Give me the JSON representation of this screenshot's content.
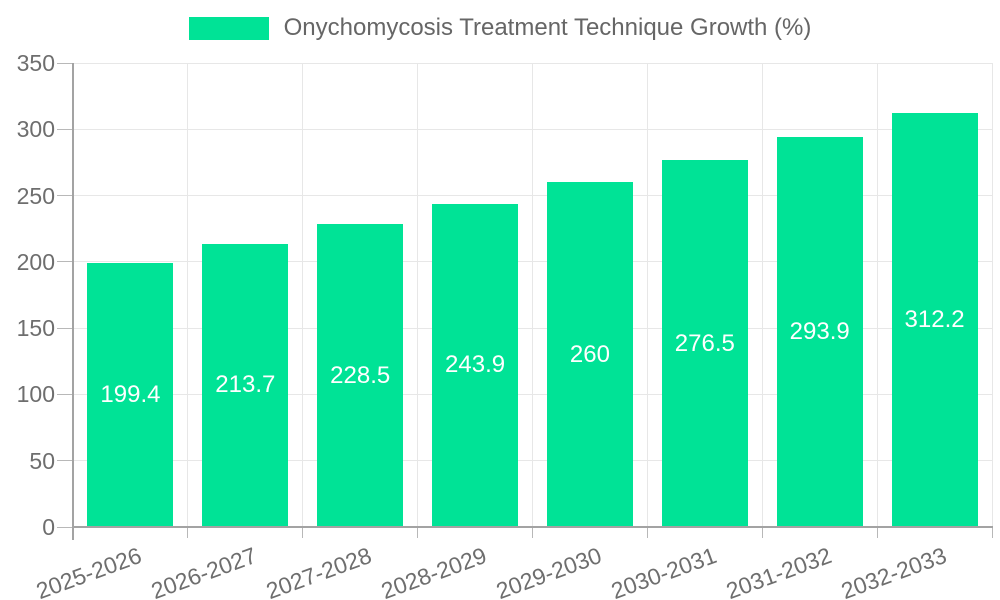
{
  "chart_data": {
    "type": "bar",
    "title": "Onychomycosis Treatment Technique Growth (%)",
    "categories": [
      "2025-2026",
      "2026-2027",
      "2027-2028",
      "2028-2029",
      "2029-2030",
      "2030-2031",
      "2031-2032",
      "2032-2033"
    ],
    "values": [
      199.4,
      213.7,
      228.5,
      243.9,
      260,
      276.5,
      293.9,
      312.2
    ],
    "value_labels": [
      "199.4",
      "213.7",
      "228.5",
      "243.9",
      "260",
      "276.5",
      "293.9",
      "312.2"
    ],
    "xlabel": "",
    "ylabel": "",
    "ylim": [
      0,
      350
    ],
    "yticks": [
      0,
      50,
      100,
      150,
      200,
      250,
      300,
      350
    ],
    "grid": true,
    "legend_position": "top",
    "value_label_position": "center"
  },
  "colors": {
    "bar": "#00E396",
    "value_label": "#FFFFFF",
    "axis_line": "#A3A3A3",
    "tick_mark": "#B8B8B8",
    "grid_line": "#E7E7E7",
    "axis_label": "#6E6E6E",
    "legend_text": "#666666",
    "background": "#FFFFFF"
  }
}
